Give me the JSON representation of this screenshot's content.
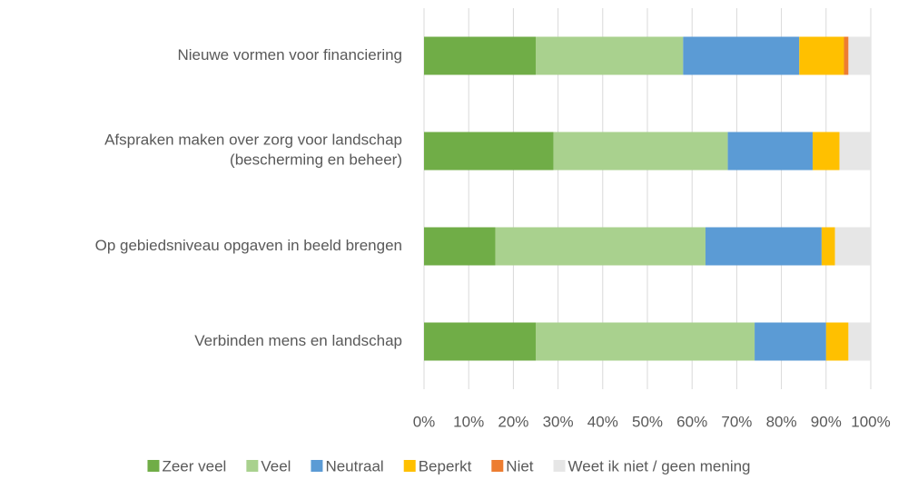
{
  "chart_data": {
    "type": "stacked_barh",
    "categories": [
      "Nieuwe vormen voor financiering",
      "Afspraken maken over zorg voor landschap\n(bescherming en beheer)",
      "Op gebiedsniveau opgaven in beeld brengen",
      "Verbinden mens en landschap"
    ],
    "series": [
      {
        "name": "Zeer veel",
        "color": "#70ad47",
        "values": [
          25,
          29,
          16,
          25
        ]
      },
      {
        "name": "Veel",
        "color": "#a9d18e",
        "values": [
          33,
          39,
          47,
          49
        ]
      },
      {
        "name": "Neutraal",
        "color": "#5b9bd5",
        "values": [
          26,
          19,
          26,
          16
        ]
      },
      {
        "name": "Beperkt",
        "color": "#ffc000",
        "values": [
          10,
          6,
          3,
          5
        ]
      },
      {
        "name": "Niet",
        "color": "#ed7d31",
        "values": [
          1,
          0,
          0,
          0
        ]
      },
      {
        "name": "Weet ik niet / geen mening",
        "color": "#e6e6e6",
        "values": [
          5,
          7,
          8,
          5
        ]
      }
    ],
    "xlim": [
      0,
      100
    ],
    "xticks": [
      {
        "value": 0,
        "label": "0%"
      },
      {
        "value": 10,
        "label": "10%"
      },
      {
        "value": 20,
        "label": "20%"
      },
      {
        "value": 30,
        "label": "30%"
      },
      {
        "value": 40,
        "label": "40%"
      },
      {
        "value": 50,
        "label": "50%"
      },
      {
        "value": 60,
        "label": "60%"
      },
      {
        "value": 70,
        "label": "70%"
      },
      {
        "value": 80,
        "label": "80%"
      },
      {
        "value": 90,
        "label": "90%"
      },
      {
        "value": 100,
        "label": "100%"
      }
    ],
    "grid": true,
    "legend": "bottom"
  }
}
